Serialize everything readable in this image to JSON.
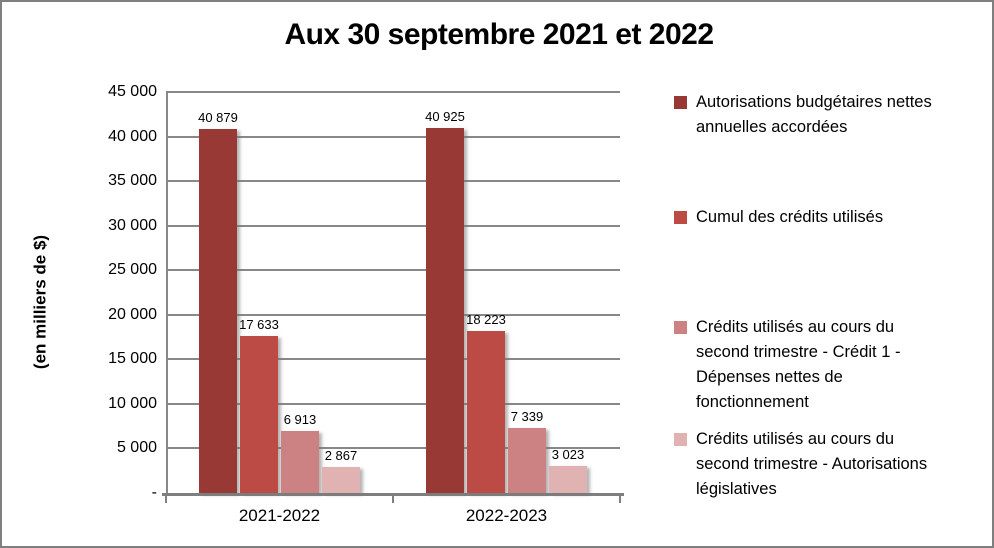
{
  "chart_data": {
    "type": "bar",
    "title": "Aux 30 septembre 2021 et 2022",
    "ylabel": "(en milliers de $)",
    "xlabel": "",
    "ylim": [
      0,
      45000
    ],
    "grid": true,
    "legend_position": "right",
    "yticks": [
      {
        "value": 45000,
        "label": "45 000"
      },
      {
        "value": 40000,
        "label": "40 000"
      },
      {
        "value": 35000,
        "label": "35 000"
      },
      {
        "value": 30000,
        "label": "30 000"
      },
      {
        "value": 25000,
        "label": "25 000"
      },
      {
        "value": 20000,
        "label": "20 000"
      },
      {
        "value": 15000,
        "label": "15 000"
      },
      {
        "value": 10000,
        "label": "10 000"
      },
      {
        "value": 5000,
        "label": "5 000"
      },
      {
        "value": 0,
        "label": "-"
      }
    ],
    "categories": [
      "2021-2022",
      "2022-2023"
    ],
    "series": [
      {
        "name": "Autorisations budgétaires nettes annuelles accordées",
        "color": "#993936",
        "values": [
          40879,
          40925
        ],
        "value_labels": [
          "40 879",
          "40 925"
        ]
      },
      {
        "name": "Cumul des crédits utilisés",
        "color": "#BC4A45",
        "values": [
          17633,
          18223
        ],
        "value_labels": [
          "17 633",
          "18 223"
        ]
      },
      {
        "name": "Crédits utilisés au cours du second trimestre - Crédit 1 - Dépenses nettes de fonctionnement",
        "color": "#CC8183",
        "values": [
          6913,
          7339
        ],
        "value_labels": [
          "6 913",
          "7 339"
        ]
      },
      {
        "name": "Crédits utilisés au cours du second trimestre - Autorisations législatives",
        "color": "#E0B3B2",
        "values": [
          2867,
          3023
        ],
        "value_labels": [
          "2 867",
          "3 023"
        ]
      }
    ],
    "legend_lines": [
      "Autorisations budgétaires nettes\nannuelles accordées",
      "Cumul des crédits utilisés",
      "Crédits utilisés au cours du\nsecond trimestre - Crédit 1 -\nDépenses nettes de\nfonctionnement",
      "Crédits utilisés au cours du\nsecond trimestre - Autorisations\nlégislatives"
    ],
    "colors": {
      "gridline": "#888888",
      "axis": "#7f7f7f",
      "frame_border": "#7f7f7f",
      "text": "#000000"
    }
  }
}
